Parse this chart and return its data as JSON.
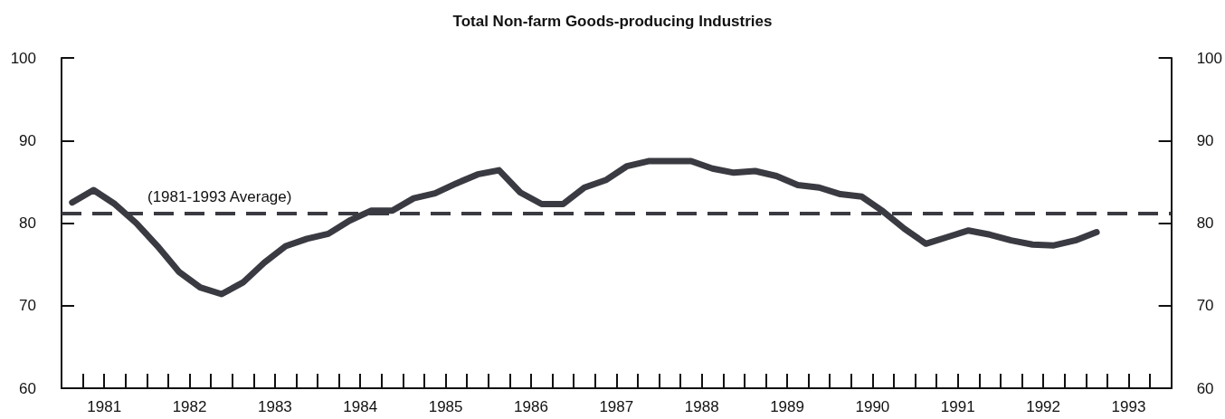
{
  "chart_data": {
    "type": "line",
    "title": "Total Non-farm Goods-producing Industries",
    "x": [
      1981.125,
      1981.375,
      1981.625,
      1981.875,
      1982.125,
      1982.375,
      1982.625,
      1982.875,
      1983.125,
      1983.375,
      1983.625,
      1983.875,
      1984.125,
      1984.375,
      1984.625,
      1984.875,
      1985.125,
      1985.375,
      1985.625,
      1985.875,
      1986.125,
      1986.375,
      1986.625,
      1986.875,
      1987.125,
      1987.375,
      1987.625,
      1987.875,
      1988.125,
      1988.375,
      1988.625,
      1988.875,
      1989.125,
      1989.375,
      1989.625,
      1989.875,
      1990.125,
      1990.375,
      1990.625,
      1990.875,
      1991.125,
      1991.375,
      1991.625,
      1991.875,
      1992.125,
      1992.375,
      1992.625,
      1992.875,
      1993.125
    ],
    "series": [
      {
        "color": "#3a3a42",
        "values": [
          82.5,
          84,
          82.3,
          80,
          77.2,
          74.1,
          72.2,
          71.4,
          72.8,
          75.2,
          77.2,
          78.1,
          78.7,
          80.3,
          81.5,
          81.5,
          83,
          83.6,
          84.8,
          85.9,
          86.4,
          83.7,
          82.3,
          82.3,
          84.3,
          85.2,
          86.9,
          87.5,
          87.5,
          87.5,
          86.6,
          86.1,
          86.3,
          85.7,
          84.6,
          84.3,
          83.5,
          83.2,
          81.4,
          79.3,
          77.5,
          78.3,
          79.1,
          78.6,
          77.9,
          77.4,
          77.3,
          77.9,
          78.9
        ]
      }
    ],
    "xlim": [
      1981,
      1994
    ],
    "xticks": [
      {
        "value": 1981.25,
        "label": null
      },
      {
        "value": 1981.5,
        "label": "1981"
      },
      {
        "value": 1981.75,
        "label": null
      },
      {
        "value": 1982,
        "label": null
      },
      {
        "value": 1982.25,
        "label": null
      },
      {
        "value": 1982.5,
        "label": "1982"
      },
      {
        "value": 1982.75,
        "label": null
      },
      {
        "value": 1983,
        "label": null
      },
      {
        "value": 1983.25,
        "label": null
      },
      {
        "value": 1983.5,
        "label": "1983"
      },
      {
        "value": 1983.75,
        "label": null
      },
      {
        "value": 1984,
        "label": null
      },
      {
        "value": 1984.25,
        "label": null
      },
      {
        "value": 1984.5,
        "label": "1984"
      },
      {
        "value": 1984.75,
        "label": null
      },
      {
        "value": 1985,
        "label": null
      },
      {
        "value": 1985.25,
        "label": null
      },
      {
        "value": 1985.5,
        "label": "1985"
      },
      {
        "value": 1985.75,
        "label": null
      },
      {
        "value": 1986,
        "label": null
      },
      {
        "value": 1986.25,
        "label": null
      },
      {
        "value": 1986.5,
        "label": "1986"
      },
      {
        "value": 1986.75,
        "label": null
      },
      {
        "value": 1987,
        "label": null
      },
      {
        "value": 1987.25,
        "label": null
      },
      {
        "value": 1987.5,
        "label": "1987"
      },
      {
        "value": 1987.75,
        "label": null
      },
      {
        "value": 1988,
        "label": null
      },
      {
        "value": 1988.25,
        "label": null
      },
      {
        "value": 1988.5,
        "label": "1988"
      },
      {
        "value": 1988.75,
        "label": null
      },
      {
        "value": 1989,
        "label": null
      },
      {
        "value": 1989.25,
        "label": null
      },
      {
        "value": 1989.5,
        "label": "1989"
      },
      {
        "value": 1989.75,
        "label": null
      },
      {
        "value": 1990,
        "label": null
      },
      {
        "value": 1990.25,
        "label": null
      },
      {
        "value": 1990.5,
        "label": "1990"
      },
      {
        "value": 1990.75,
        "label": null
      },
      {
        "value": 1991,
        "label": null
      },
      {
        "value": 1991.25,
        "label": null
      },
      {
        "value": 1991.5,
        "label": "1991"
      },
      {
        "value": 1991.75,
        "label": null
      },
      {
        "value": 1992,
        "label": null
      },
      {
        "value": 1992.25,
        "label": null
      },
      {
        "value": 1992.5,
        "label": "1992"
      },
      {
        "value": 1992.75,
        "label": null
      },
      {
        "value": 1993,
        "label": null
      },
      {
        "value": 1993.25,
        "label": null
      },
      {
        "value": 1993.5,
        "label": "1993"
      },
      {
        "value": 1993.75,
        "label": null
      }
    ],
    "ylim": [
      60,
      100
    ],
    "yticks": [
      60,
      70,
      80,
      90,
      100
    ],
    "y2lim": [
      60,
      100
    ],
    "y2ticks": [
      60,
      70,
      80,
      90,
      100
    ],
    "ref_lines": [
      {
        "axis": "y",
        "value": 81.2,
        "label": "(1981-1993 Average)",
        "color": "#3a3a42",
        "line_style": "dashed"
      }
    ],
    "marker": "none",
    "line_style": "solid"
  }
}
